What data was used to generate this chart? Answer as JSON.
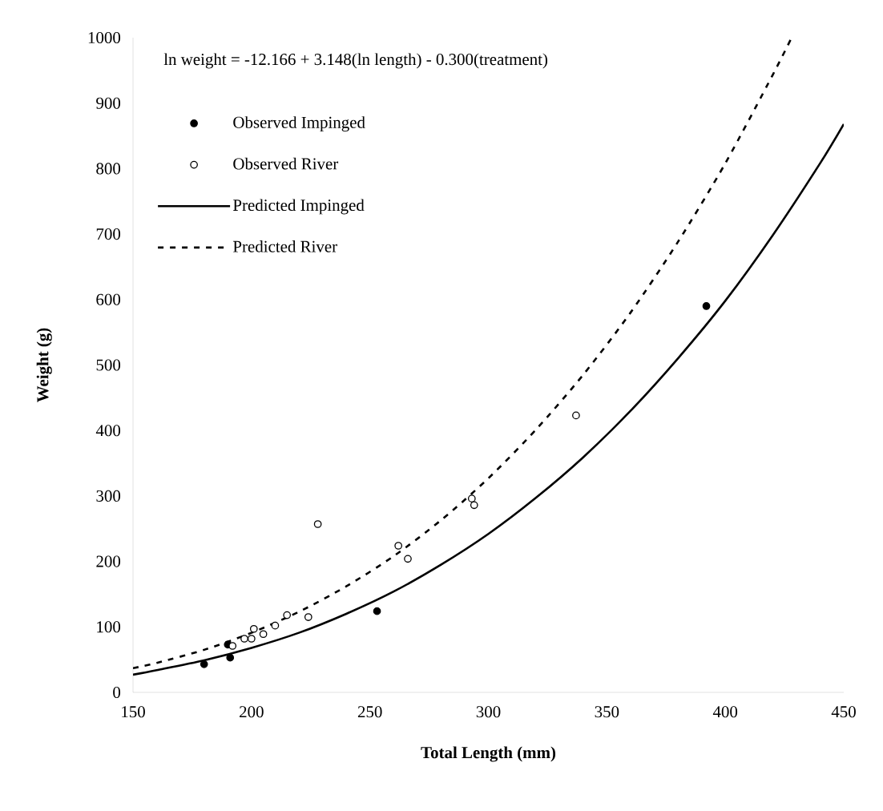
{
  "chart_data": {
    "type": "scatter",
    "xlabel": "Total Length (mm)",
    "ylabel": "Weight (g)",
    "annotations": [
      "ln weight = -12.166 + 3.148(ln length) - 0.300(treatment)"
    ],
    "xlim": [
      150,
      450
    ],
    "ylim": [
      0,
      1000
    ],
    "xticks": [
      150,
      200,
      250,
      300,
      350,
      400,
      450
    ],
    "yticks": [
      0,
      100,
      200,
      300,
      400,
      500,
      600,
      700,
      800,
      900,
      1000
    ],
    "grid": false,
    "legend": "top left",
    "marker": "circle",
    "series": [
      {
        "name": "Observed Impinged",
        "color": "#000000",
        "x": [
          180,
          190,
          191,
          253,
          392
        ],
        "values": [
          43,
          73,
          53,
          124,
          590
        ]
      },
      {
        "name": "Observed River",
        "color": "#000000",
        "x": [
          192,
          197,
          200,
          201,
          205,
          210,
          215,
          224,
          228,
          262,
          266,
          293,
          294,
          337
        ],
        "values": [
          71,
          82,
          82,
          97,
          89,
          102,
          118,
          115,
          257,
          224,
          204,
          296,
          286,
          423
        ]
      },
      {
        "name": "Predicted Impinged",
        "type": "line",
        "marker": "none",
        "line_style": "solid",
        "color": "#000000",
        "x": [
          150,
          160,
          180,
          200,
          220,
          240,
          260,
          280,
          300,
          320,
          340,
          360,
          380,
          400,
          420,
          440,
          450
        ],
        "values": [
          27,
          34,
          49,
          68,
          91,
          120,
          154,
          195,
          242,
          297,
          359,
          430,
          510,
          598,
          698,
          808,
          868
        ]
      },
      {
        "name": "Predicted River",
        "type": "line",
        "marker": "none",
        "line_style": "dashed",
        "color": "#000000",
        "x": [
          150,
          160,
          180,
          200,
          220,
          240,
          260,
          280,
          300,
          320,
          340,
          360,
          380,
          400,
          420,
          428
        ],
        "values": [
          37,
          45,
          65,
          91,
          123,
          162,
          208,
          263,
          327,
          401,
          485,
          580,
          688,
          808,
          943,
          1000
        ]
      }
    ]
  }
}
